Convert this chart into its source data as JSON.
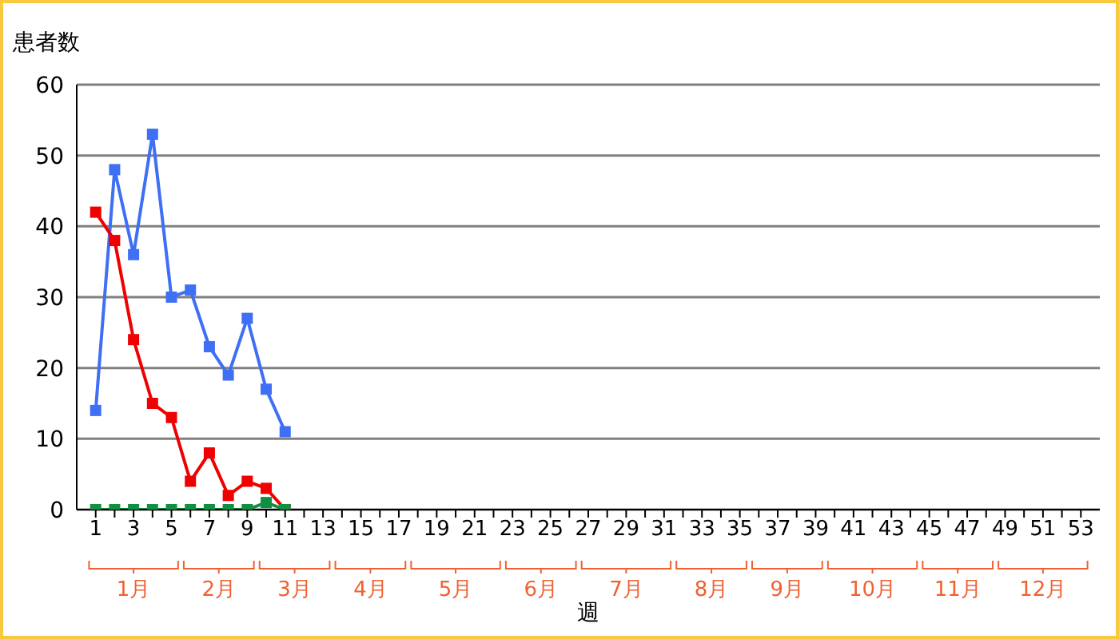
{
  "chart_data": {
    "type": "line",
    "ylabel": "患者数",
    "xlabel": "週",
    "x": [
      1,
      2,
      3,
      4,
      5,
      6,
      7,
      8,
      9,
      10,
      11
    ],
    "series": [
      {
        "color": "#3f6ff5",
        "values": [
          14,
          48,
          36,
          53,
          30,
          31,
          23,
          19,
          27,
          17,
          11
        ]
      },
      {
        "color": "#f00000",
        "values": [
          42,
          38,
          24,
          15,
          13,
          4,
          8,
          2,
          4,
          3,
          0
        ]
      },
      {
        "color": "#109040",
        "values": [
          0,
          0,
          0,
          0,
          0,
          0,
          0,
          0,
          0,
          1,
          0
        ]
      }
    ],
    "xlim": [
      0,
      54
    ],
    "xticks": [
      1,
      {
        "value": 2,
        "label": null
      },
      3,
      {
        "value": 4,
        "label": null
      },
      5,
      {
        "value": 6,
        "label": null
      },
      7,
      {
        "value": 8,
        "label": null
      },
      9,
      {
        "value": 10,
        "label": null
      },
      11,
      {
        "value": 12,
        "label": null
      },
      13,
      {
        "value": 14,
        "label": null
      },
      15,
      {
        "value": 16,
        "label": null
      },
      17,
      {
        "value": 18,
        "label": null
      },
      19,
      {
        "value": 20,
        "label": null
      },
      21,
      {
        "value": 22,
        "label": null
      },
      23,
      {
        "value": 24,
        "label": null
      },
      25,
      {
        "value": 26,
        "label": null
      },
      27,
      {
        "value": 28,
        "label": null
      },
      29,
      {
        "value": 30,
        "label": null
      },
      31,
      {
        "value": 32,
        "label": null
      },
      33,
      {
        "value": 34,
        "label": null
      },
      35,
      {
        "value": 36,
        "label": null
      },
      37,
      {
        "value": 38,
        "label": null
      },
      39,
      {
        "value": 40,
        "label": null
      },
      41,
      {
        "value": 42,
        "label": null
      },
      43,
      {
        "value": 44,
        "label": null
      },
      45,
      {
        "value": 46,
        "label": null
      },
      47,
      {
        "value": 48,
        "label": null
      },
      49,
      {
        "value": 50,
        "label": null
      },
      51,
      {
        "value": 52,
        "label": null
      },
      53
    ],
    "annotations": [
      "1月",
      "2月",
      "3月",
      "4月",
      "5月",
      "6月",
      "7月",
      "8月",
      "9月",
      "10月",
      "11月",
      "12月"
    ],
    "ylim": [
      0,
      60
    ],
    "yticks": [
      0,
      10,
      20,
      30,
      40,
      50,
      60
    ],
    "grid": "y",
    "legend": false,
    "marker": "square",
    "line_style": "solid"
  }
}
